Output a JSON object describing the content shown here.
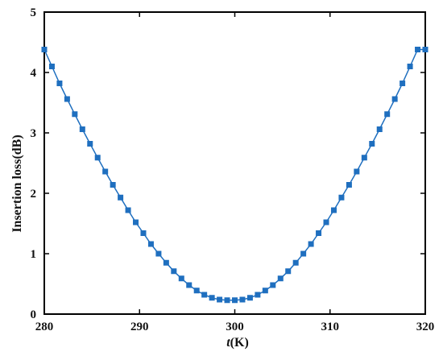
{
  "chart_data": {
    "type": "line",
    "xlabel_italic": "t",
    "xlabel_rest": "(K)",
    "ylabel": "Insertion loss(dB)",
    "xlim": [
      280,
      320
    ],
    "ylim": [
      0,
      5
    ],
    "xticks": [
      280,
      290,
      300,
      310,
      320
    ],
    "yticks": [
      0,
      1,
      2,
      3,
      4,
      5
    ],
    "grid": false,
    "legend": "none",
    "marker": "square",
    "color": "#1f6fbf",
    "series": [
      {
        "x": [
          280,
          280.8,
          281.6,
          282.4,
          283.2,
          284,
          284.8,
          285.6,
          286.4,
          287.2,
          288,
          288.8,
          289.6,
          290.4,
          291.2,
          292,
          292.8,
          293.6,
          294.4,
          295.2,
          296,
          296.8,
          297.6,
          298.4,
          299.2,
          300,
          300.8,
          301.6,
          302.4,
          303.2,
          304,
          304.8,
          305.6,
          306.4,
          307.2,
          308,
          308.8,
          309.6,
          310.4,
          311.2,
          312,
          312.8,
          313.6,
          314.4,
          315.2,
          316,
          316.8,
          317.6,
          318.4,
          319.2,
          320
        ],
        "y": [
          4.38,
          4.1,
          3.82,
          3.56,
          3.31,
          3.06,
          2.82,
          2.59,
          2.36,
          2.14,
          1.93,
          1.72,
          1.52,
          1.34,
          1.16,
          1.0,
          0.85,
          0.71,
          0.59,
          0.48,
          0.39,
          0.32,
          0.27,
          0.24,
          0.23,
          0.23,
          0.24,
          0.27,
          0.32,
          0.39,
          0.48,
          0.59,
          0.71,
          0.85,
          1.0,
          1.16,
          1.34,
          1.52,
          1.72,
          1.93,
          2.14,
          2.36,
          2.59,
          2.82,
          3.06,
          3.31,
          3.56,
          3.82,
          4.1,
          4.38,
          4.38
        ]
      }
    ]
  }
}
